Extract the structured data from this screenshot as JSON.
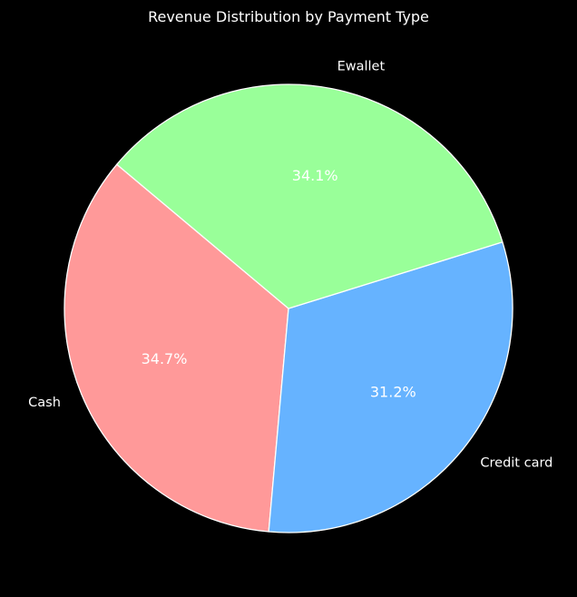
{
  "chart_data": {
    "type": "pie",
    "title": "Revenue Distribution by Payment Type",
    "categories": [
      "Cash",
      "Credit card",
      "Ewallet"
    ],
    "values": [
      34.7,
      31.2,
      34.1
    ],
    "value_labels": [
      "34.7%",
      "31.2%",
      "34.1%"
    ],
    "colors": [
      "#ff9999",
      "#66b3ff",
      "#99ff99"
    ],
    "edge_color": "#ffffff",
    "background": "#000000",
    "start_angle_deg": 140,
    "direction": "counterclockwise",
    "legend": "none"
  }
}
